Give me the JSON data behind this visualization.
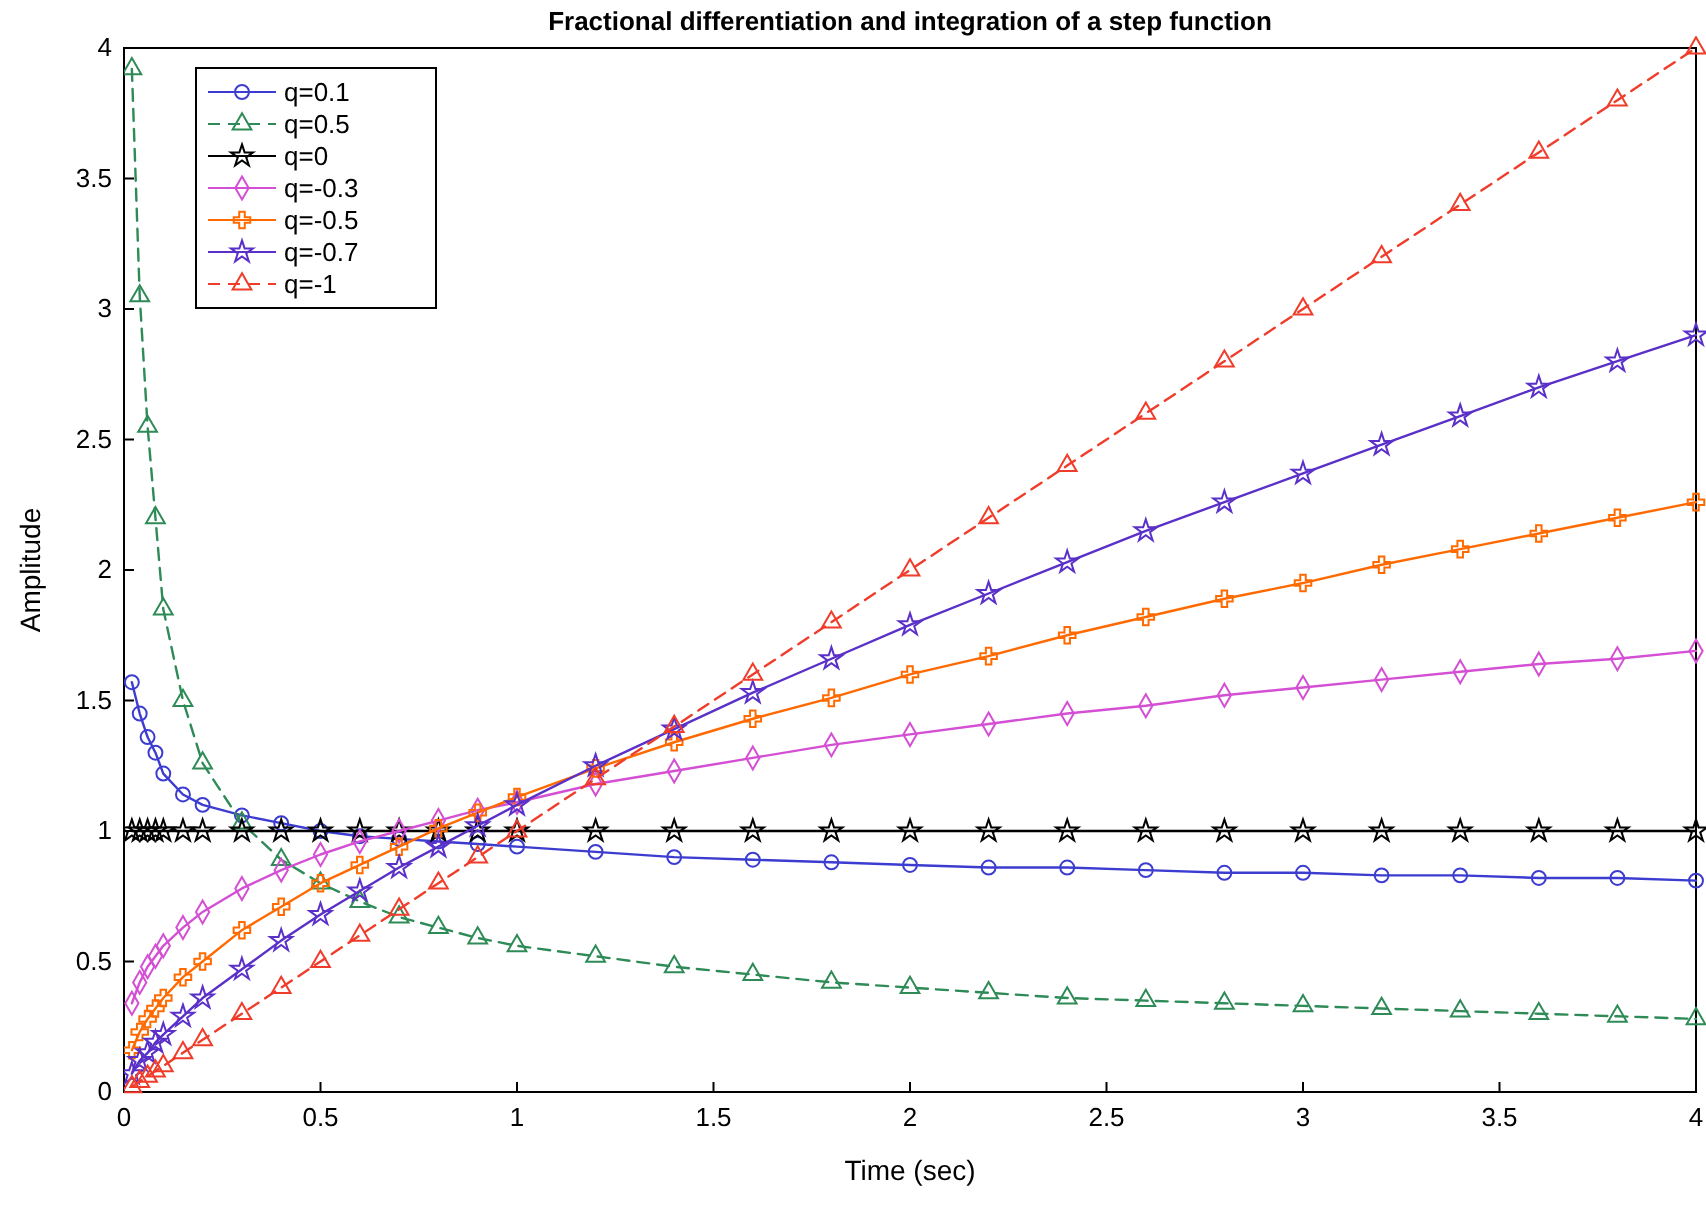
{
  "chart_data": {
    "type": "line",
    "title": "Fractional differentiation and integration of a step function",
    "xlabel": "Time (sec)",
    "ylabel": "Amplitude",
    "x": [
      0.02,
      0.04,
      0.06,
      0.08,
      0.1,
      0.15,
      0.2,
      0.3,
      0.4,
      0.5,
      0.6,
      0.7,
      0.8,
      0.9,
      1,
      1.2,
      1.4,
      1.6,
      1.8,
      2,
      2.2,
      2.4,
      2.6,
      2.8,
      3,
      3.2,
      3.4,
      3.6,
      3.8,
      4
    ],
    "xlim": [
      0,
      4
    ],
    "ylim": [
      0,
      4
    ],
    "xticks": [
      0,
      0.5,
      1,
      1.5,
      2,
      2.5,
      3,
      3.5,
      4
    ],
    "yticks": [
      0,
      0.5,
      1,
      1.5,
      2,
      2.5,
      3,
      3.5,
      4
    ],
    "grid": false,
    "legend": "top left",
    "series": [
      {
        "name": "q=0.1",
        "color": "#3c3cd0",
        "marker": "circle",
        "line_style": "solid",
        "values": [
          1.57,
          1.45,
          1.36,
          1.3,
          1.22,
          1.14,
          1.1,
          1.06,
          1.03,
          1.0,
          0.98,
          0.97,
          0.96,
          0.95,
          0.94,
          0.92,
          0.9,
          0.89,
          0.88,
          0.87,
          0.86,
          0.86,
          0.85,
          0.84,
          0.84,
          0.83,
          0.83,
          0.82,
          0.82,
          0.81
        ]
      },
      {
        "name": "q=0.5",
        "color": "#2e8b57",
        "marker": "triangle",
        "line_style": "dashed",
        "values": [
          3.92,
          3.05,
          2.55,
          2.2,
          1.85,
          1.5,
          1.26,
          1.03,
          0.89,
          0.8,
          0.73,
          0.67,
          0.63,
          0.59,
          0.56,
          0.52,
          0.48,
          0.45,
          0.42,
          0.4,
          0.38,
          0.36,
          0.35,
          0.34,
          0.33,
          0.32,
          0.31,
          0.3,
          0.29,
          0.28
        ]
      },
      {
        "name": "q=0",
        "color": "#000000",
        "marker": "star",
        "line_style": "solid",
        "values": [
          1,
          1,
          1,
          1,
          1,
          1,
          1,
          1,
          1,
          1,
          1,
          1,
          1,
          1,
          1,
          1,
          1,
          1,
          1,
          1,
          1,
          1,
          1,
          1,
          1,
          1,
          1,
          1,
          1,
          1
        ]
      },
      {
        "name": "q=-0.3",
        "color": "#d44fd4",
        "marker": "diamond",
        "line_style": "solid",
        "values": [
          0.34,
          0.42,
          0.48,
          0.52,
          0.56,
          0.63,
          0.69,
          0.78,
          0.85,
          0.91,
          0.96,
          1.0,
          1.04,
          1.08,
          1.11,
          1.18,
          1.23,
          1.28,
          1.33,
          1.37,
          1.41,
          1.45,
          1.48,
          1.52,
          1.55,
          1.58,
          1.61,
          1.64,
          1.66,
          1.69
        ]
      },
      {
        "name": "q=-0.5",
        "color": "#ff6a00",
        "marker": "cross",
        "line_style": "solid",
        "values": [
          0.16,
          0.23,
          0.28,
          0.32,
          0.36,
          0.44,
          0.5,
          0.62,
          0.71,
          0.8,
          0.87,
          0.94,
          1.01,
          1.07,
          1.13,
          1.24,
          1.34,
          1.43,
          1.51,
          1.6,
          1.67,
          1.75,
          1.82,
          1.89,
          1.95,
          2.02,
          2.08,
          2.14,
          2.2,
          2.26
        ]
      },
      {
        "name": "q=-0.7",
        "color": "#5a30c8",
        "marker": "star",
        "line_style": "solid",
        "values": [
          0.07,
          0.12,
          0.15,
          0.19,
          0.22,
          0.29,
          0.36,
          0.47,
          0.58,
          0.68,
          0.77,
          0.86,
          0.94,
          1.02,
          1.1,
          1.25,
          1.39,
          1.53,
          1.66,
          1.79,
          1.91,
          2.03,
          2.15,
          2.26,
          2.37,
          2.48,
          2.59,
          2.7,
          2.8,
          2.9
        ]
      },
      {
        "name": "q=-1",
        "color": "#f03c2a",
        "marker": "triangle",
        "line_style": "dashed",
        "values": [
          0.02,
          0.04,
          0.06,
          0.08,
          0.1,
          0.15,
          0.2,
          0.3,
          0.4,
          0.5,
          0.6,
          0.7,
          0.8,
          0.9,
          1,
          1.2,
          1.4,
          1.6,
          1.8,
          2,
          2.2,
          2.4,
          2.6,
          2.8,
          3,
          3.2,
          3.4,
          3.6,
          3.8,
          4
        ]
      }
    ]
  }
}
